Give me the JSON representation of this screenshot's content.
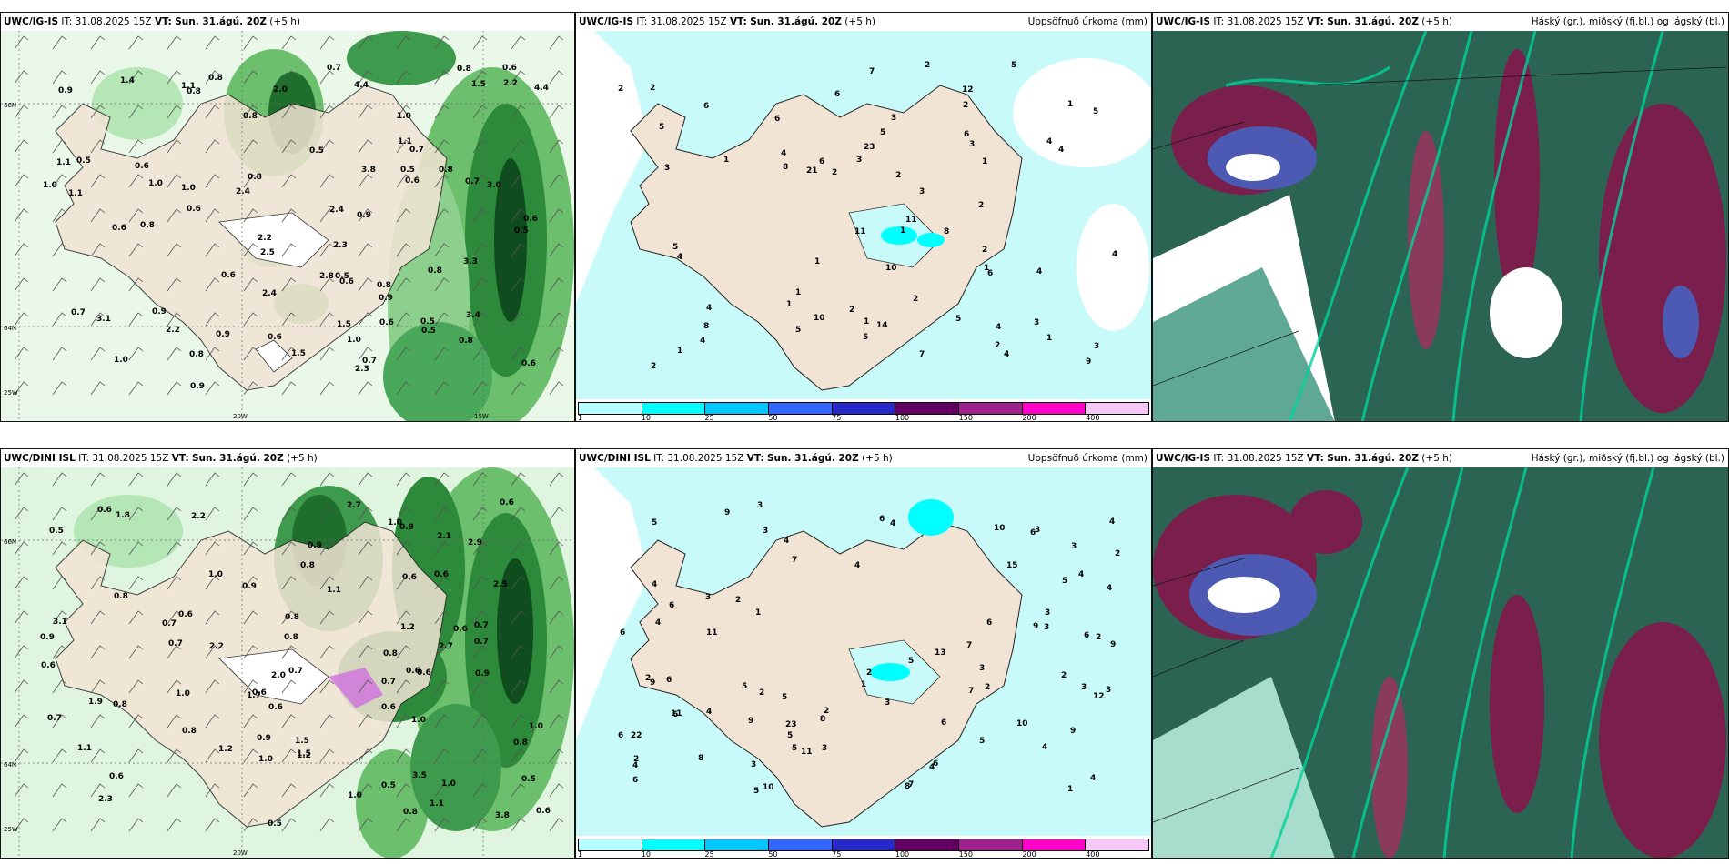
{
  "panels": {
    "p1": {
      "model": "UWC/IG-IS",
      "it_label": "IT:",
      "it": "31.08.2025 15Z",
      "vt_label": "VT:",
      "vt": "Sun. 31.ágú. 20Z",
      "lead": "(+5 h)",
      "right_title": "",
      "axis": {
        "lat_a": "66N",
        "lat_b": "64N",
        "lon_a": "20W",
        "lon_b": "15W",
        "lon_left": "25W"
      },
      "labels": [
        "0.7",
        "0.8",
        "0.9",
        "0.6",
        "0.8",
        "1.0",
        "0.5",
        "0.6",
        "2.5",
        "2.2",
        "3.1",
        "1.1",
        "2.2",
        "0.5",
        "0.6",
        "0.8",
        "1.1",
        "1.5",
        "0.8",
        "0.7",
        "0.5",
        "0.6",
        "0.8",
        "0.5",
        "0.9",
        "0.7",
        "0.8",
        "1.0",
        "1.5",
        "0.8",
        "0.9",
        "0.6",
        "1.0",
        "0.9",
        "0.8",
        "0.6",
        "0.7",
        "0.5",
        "0.6",
        "0.8",
        "2.0",
        "2.4",
        "4.4",
        "3.4",
        "4.4",
        "3.3",
        "2.8",
        "2.4",
        "2.3",
        "2.2",
        "0.6",
        "0.5",
        "1.0",
        "1.1",
        "0.9",
        "0.6",
        "0.8",
        "0.8",
        "0.9",
        "0.7",
        "1.0",
        "2.3",
        "0.5",
        "0.6",
        "1.1",
        "1.0",
        "1.4",
        "1.5",
        "0.6",
        "2.4",
        "3.0",
        "3.8"
      ]
    },
    "p2": {
      "model": "UWC/IG-IS",
      "it_label": "IT:",
      "it": "31.08.2025 15Z",
      "vt_label": "VT:",
      "vt": "Sun. 31.ágú. 20Z",
      "lead": "(+5 h)",
      "right_title": "Uppsöfnuð úrkoma (mm)",
      "labels": [
        "1",
        "4",
        "11",
        "10",
        "6",
        "2",
        "3",
        "12",
        "4",
        "1",
        "9",
        "8",
        "10",
        "7",
        "5",
        "4",
        "1",
        "4",
        "11",
        "5",
        "2",
        "4",
        "5",
        "8",
        "6",
        "2",
        "6",
        "5",
        "4",
        "2",
        "1",
        "1",
        "3",
        "2",
        "1",
        "7",
        "1",
        "1",
        "3",
        "2",
        "1",
        "1",
        "6",
        "5",
        "2",
        "21",
        "23",
        "14",
        "4",
        "3",
        "5",
        "3",
        "2",
        "2",
        "4",
        "6",
        "4",
        "2",
        "3",
        "2",
        "2",
        "6",
        "3",
        "1",
        "4",
        "5",
        "5",
        "8"
      ]
    },
    "p3": {
      "model": "UWC/IG-IS",
      "it_label": "IT:",
      "it": "31.08.2025 15Z",
      "vt_label": "VT:",
      "vt": "Sun. 31.ágú. 20Z",
      "lead": "(+5 h)",
      "right_title": "Háský (gr.), miðský (fj.bl.) og lágský (bl.)"
    },
    "p4": {
      "model": "UWC/DINI ISL",
      "it_label": "IT:",
      "it": "31.08.2025 15Z",
      "vt_label": "VT:",
      "vt": "Sun. 31.ágú. 20Z",
      "lead": "(+5 h)",
      "right_title": "",
      "axis": {
        "lat_a": "66N",
        "lat_b": "64N",
        "lon_a": "20W",
        "lon_left": "25W"
      },
      "labels": [
        "0.6",
        "1.0",
        "0.6",
        "0.8",
        "0.5",
        "0.6",
        "0.7",
        "0.8",
        "0.5",
        "1.1",
        "0.6",
        "0.7",
        "0.7",
        "1.0",
        "0.8",
        "3.8",
        "2.9",
        "1.9",
        "2.1",
        "0.9",
        "0.6",
        "0.6",
        "1.2",
        "1.0",
        "0.7",
        "0.6",
        "0.8",
        "0.6",
        "0.6",
        "0.8",
        "2.5",
        "2.7",
        "3.1",
        "3.5",
        "2.2",
        "2.3",
        "1.1",
        "0.7",
        "0.6",
        "0.8",
        "0.6",
        "1.0",
        "0.9",
        "0.5",
        "0.9",
        "1.0",
        "0.6",
        "0.6",
        "2.0",
        "1.8",
        "0.9",
        "0.7",
        "0.8",
        "1.0",
        "0.5",
        "0.7",
        "0.9",
        "0.6",
        "2.7",
        "1.5",
        "0.9",
        "1.0",
        "0.8",
        "1.0",
        "1.2",
        "1.1",
        "0.8",
        "1.2",
        "1.5",
        "1.7",
        "2.2"
      ]
    },
    "p5": {
      "model": "UWC/DINI ISL",
      "it_label": "IT:",
      "it": "31.08.2025 15Z",
      "vt_label": "VT:",
      "vt": "Sun. 31.ágú. 20Z",
      "lead": "(+5 h)",
      "right_title": "Uppsöfnuð úrkoma (mm)",
      "labels": [
        "2",
        "6",
        "4",
        "5",
        "3",
        "2",
        "1",
        "2",
        "8",
        "9",
        "6",
        "22",
        "13",
        "4",
        "2",
        "1",
        "3",
        "9",
        "11",
        "3",
        "3",
        "3",
        "4",
        "2",
        "2",
        "5",
        "5",
        "4",
        "6",
        "7",
        "12",
        "9",
        "2",
        "2",
        "6",
        "4",
        "6",
        "9",
        "8",
        "4",
        "6",
        "11",
        "10",
        "4",
        "1",
        "3",
        "5",
        "4",
        "6",
        "7",
        "15",
        "6",
        "9",
        "4",
        "3",
        "23",
        "8",
        "10",
        "9",
        "10",
        "4",
        "3",
        "4",
        "5",
        "5",
        "6",
        "7",
        "3",
        "3",
        "3",
        "11",
        "6",
        "5",
        "4",
        "3",
        "3",
        "6",
        "5",
        "5",
        "4",
        "2",
        "2",
        "6",
        "7"
      ]
    },
    "p6": {
      "model": "UWC/IG-IS",
      "it_label": "IT:",
      "it": "31.08.2025 15Z",
      "vt_label": "VT:",
      "vt": "Sun. 31.ágú. 20Z",
      "lead": "(+5 h)",
      "right_title": "Háský (gr.), miðský (fj.bl.) og lágský (bl.)"
    }
  },
  "colorbar": {
    "ticks": [
      "1",
      "10",
      "25",
      "50",
      "75",
      "100",
      "150",
      "200",
      "400"
    ],
    "colors": [
      "#b3ffff",
      "#00ffff",
      "#00c8ff",
      "#3366ff",
      "#2828c8",
      "#640064",
      "#a0208c",
      "#ff00c8",
      "#f5c8f5"
    ]
  },
  "colors": {
    "land": "#f2e4d5",
    "precip_light": "#c8f5c8",
    "precip_mid": "#55aa55",
    "precip_dark": "#105a20",
    "precip_total": "#c8fafa",
    "cloud_high": "#00b08a",
    "cloud_mid": "#4c5ab4",
    "cloud_low": "#7a1e4c",
    "cloud_bg": "#2c6454"
  }
}
